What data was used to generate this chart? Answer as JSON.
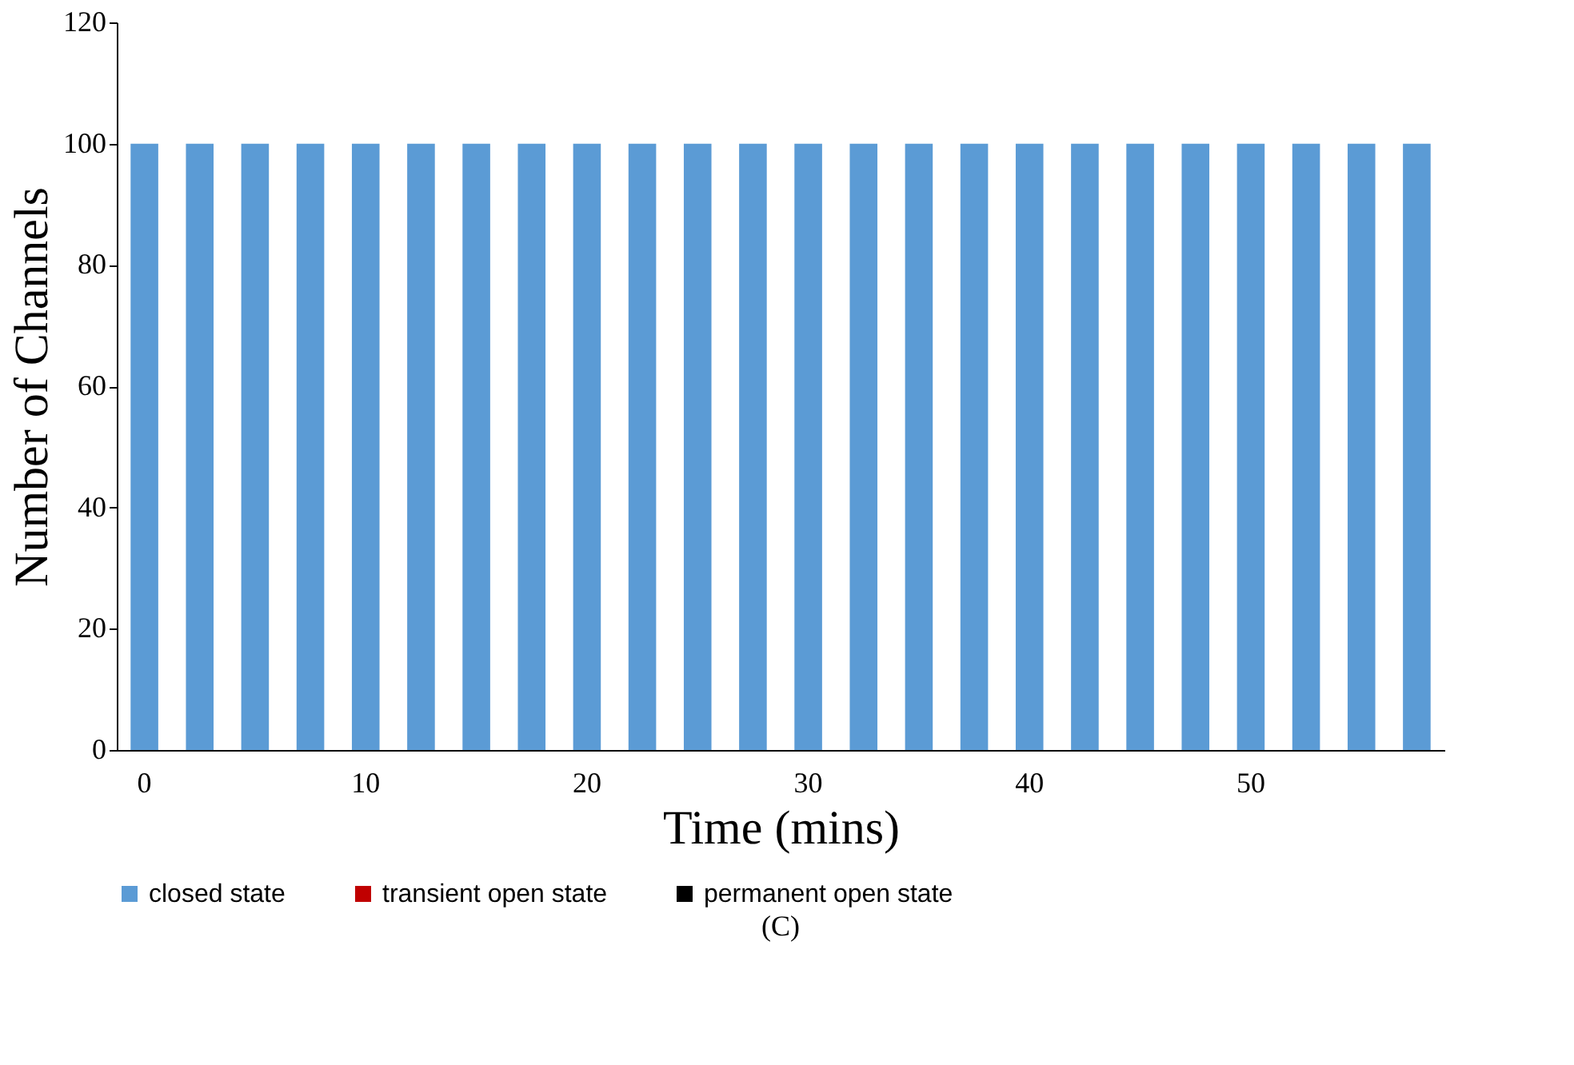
{
  "chart_data": {
    "type": "bar",
    "xlabel": "Time (mins)",
    "ylabel": "Number of Channels",
    "categories": [
      "0",
      null,
      null,
      null,
      "10",
      null,
      null,
      null,
      "20",
      null,
      null,
      null,
      "30",
      null,
      null,
      null,
      "40",
      null,
      null,
      null,
      "50",
      null,
      null,
      null
    ],
    "series": [
      {
        "name": "closed state",
        "color": "#5b9bd5",
        "values": [
          100,
          100,
          100,
          100,
          100,
          100,
          100,
          100,
          100,
          100,
          100,
          100,
          100,
          100,
          100,
          100,
          100,
          100,
          100,
          100,
          100,
          100,
          100,
          100
        ]
      },
      {
        "name": "transient open state",
        "color": "#c00000",
        "values": [
          0,
          0,
          0,
          0,
          0,
          0,
          0,
          0,
          0,
          0,
          0,
          0,
          0,
          0,
          0,
          0,
          0,
          0,
          0,
          0,
          0,
          0,
          0,
          0
        ]
      },
      {
        "name": "permanent open state",
        "color": "#000000",
        "values": [
          0,
          0,
          0,
          0,
          0,
          0,
          0,
          0,
          0,
          0,
          0,
          0,
          0,
          0,
          0,
          0,
          0,
          0,
          0,
          0,
          0,
          0,
          0,
          0
        ]
      }
    ],
    "ylim": [
      0,
      120
    ],
    "yticks": [
      0,
      20,
      40,
      60,
      80,
      100,
      120
    ],
    "grid": false,
    "legend": "bottom",
    "annotations": [
      "(C)"
    ]
  }
}
